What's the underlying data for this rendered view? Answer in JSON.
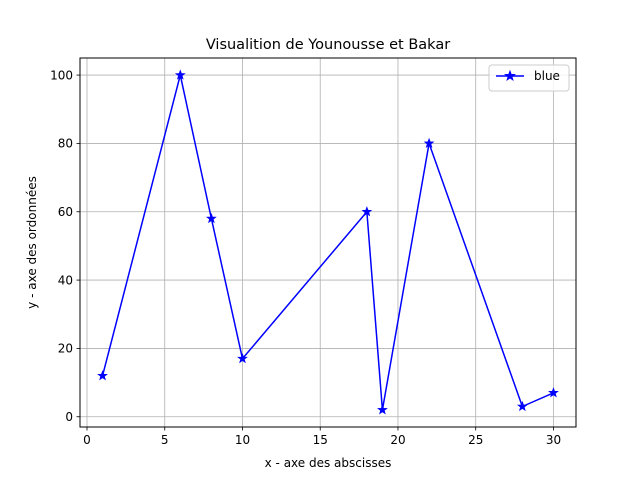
{
  "chart_data": {
    "type": "line",
    "title": "Visualition de Younousse et Bakar",
    "xlabel": "x - axe des abscisses",
    "ylabel": "y - axe des ordonnées",
    "xlim": [
      -0.45,
      31.45
    ],
    "ylim": [
      -3,
      105
    ],
    "xticks": [
      0,
      5,
      10,
      15,
      20,
      25,
      30
    ],
    "yticks": [
      0,
      20,
      40,
      60,
      80,
      100
    ],
    "grid": true,
    "legend_position": "top-right",
    "series": [
      {
        "name": "blue",
        "color": "#0000ff",
        "marker": "star",
        "x": [
          1,
          6,
          8,
          10,
          18,
          19,
          22,
          28,
          30
        ],
        "y": [
          12,
          100,
          58,
          17,
          60,
          2,
          80,
          3,
          7
        ]
      }
    ]
  }
}
